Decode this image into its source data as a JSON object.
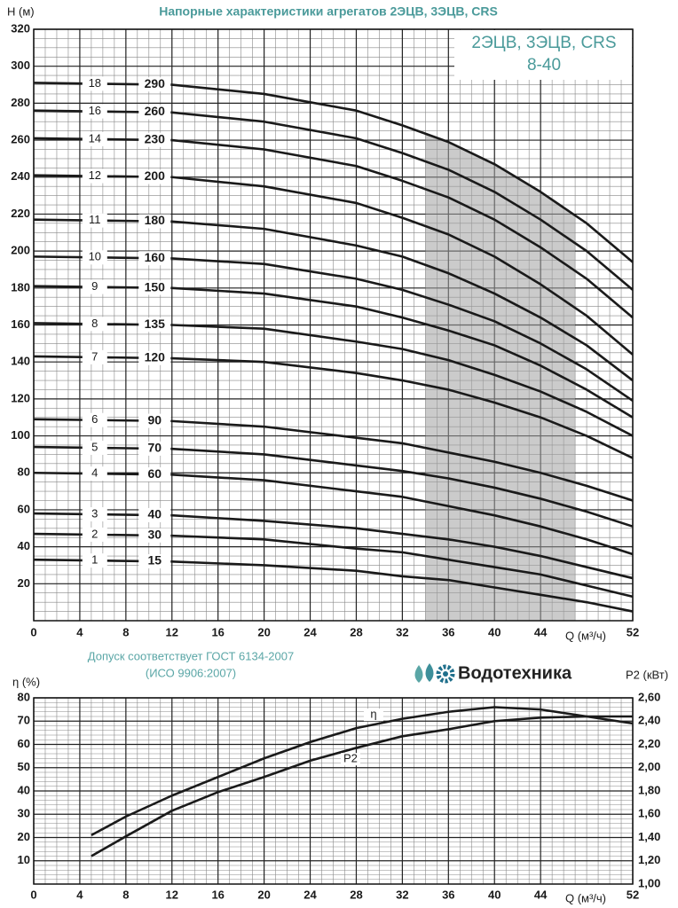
{
  "header": {
    "brand": "Водотехника",
    "note_1": "Допуск соответствует ГОСТ 6134-2007",
    "note_2": "(ИСО 9906:2007)"
  },
  "chart_data": [
    {
      "type": "line",
      "title": "Напорные характеристики агрегатов 2ЭЦВ, 3ЭЦВ, CRS",
      "box_title": "2ЭЦВ, 3ЭЦВ, CRS",
      "box_subtitle": "8-40",
      "x_label": "Q (м³/ч)",
      "y_label": "H (м)",
      "xlim": [
        0,
        52
      ],
      "ylim": [
        0,
        320
      ],
      "xticks": [
        0,
        4,
        8,
        12,
        16,
        20,
        24,
        28,
        32,
        36,
        40,
        44,
        52
      ],
      "yticks": [
        20,
        40,
        60,
        80,
        100,
        120,
        140,
        160,
        180,
        200,
        220,
        240,
        260,
        280,
        300,
        320
      ],
      "grid": true,
      "minor_grid": {
        "x": 1,
        "y": 5
      },
      "working_range": [
        34,
        47
      ],
      "color": "#1a1a1a",
      "x": [
        0,
        12,
        20,
        28,
        32,
        36,
        40,
        44,
        48,
        52
      ],
      "series": [
        {
          "name": "18",
          "label": "290",
          "values": [
            291,
            290,
            285,
            276,
            268,
            259,
            247,
            232,
            215,
            194
          ]
        },
        {
          "name": "16",
          "label": "260",
          "values": [
            276,
            275,
            270,
            261,
            253,
            244,
            232,
            217,
            200,
            179
          ]
        },
        {
          "name": "14",
          "label": "230",
          "values": [
            261,
            260,
            255,
            246,
            238,
            229,
            217,
            202,
            185,
            164
          ]
        },
        {
          "name": "12",
          "label": "200",
          "values": [
            241,
            240,
            235,
            226,
            218,
            209,
            197,
            182,
            165,
            144
          ]
        },
        {
          "name": "11",
          "label": "180",
          "values": [
            217,
            216,
            212,
            203,
            197,
            188,
            177,
            164,
            149,
            130
          ]
        },
        {
          "name": "10",
          "label": "160",
          "values": [
            197,
            196,
            193,
            185,
            179,
            171,
            162,
            150,
            136,
            119
          ]
        },
        {
          "name": "9",
          "label": "150",
          "values": [
            181,
            180,
            177,
            170,
            164,
            157,
            149,
            138,
            125,
            110
          ]
        },
        {
          "name": "8",
          "label": "135",
          "values": [
            161,
            160,
            158,
            151,
            147,
            141,
            133,
            124,
            113,
            100
          ]
        },
        {
          "name": "7",
          "label": "120",
          "values": [
            143,
            142,
            140,
            134,
            130,
            125,
            118,
            110,
            100,
            88
          ]
        },
        {
          "name": "6",
          "label": "90",
          "values": [
            109,
            108,
            105,
            99,
            96,
            91,
            86,
            80,
            73,
            65
          ]
        },
        {
          "name": "5",
          "label": "70",
          "values": [
            94,
            93,
            90,
            84,
            81,
            77,
            72,
            66,
            59,
            51
          ]
        },
        {
          "name": "4",
          "label": "60",
          "values": [
            80,
            79,
            76,
            70,
            67,
            62,
            57,
            51,
            44,
            36
          ]
        },
        {
          "name": "3",
          "label": "40",
          "values": [
            58,
            57,
            54,
            50,
            47,
            44,
            40,
            35,
            29,
            23
          ]
        },
        {
          "name": "2",
          "label": "30",
          "values": [
            47,
            46,
            44,
            39,
            37,
            33,
            29,
            25,
            19,
            13
          ]
        },
        {
          "name": "1",
          "label": "15",
          "values": [
            33,
            32,
            30,
            27,
            24,
            22,
            18,
            14,
            10,
            5
          ]
        }
      ]
    },
    {
      "type": "line",
      "x_label": "Q (м³/ч)",
      "y_label": "η (%)",
      "y2_label": "P2 (кВт)",
      "xlim": [
        0,
        52
      ],
      "ylim": [
        0,
        80
      ],
      "y2lim": [
        1,
        2.6
      ],
      "xticks": [
        0,
        4,
        8,
        12,
        16,
        20,
        24,
        28,
        32,
        36,
        40,
        44,
        52
      ],
      "yticks": [
        10,
        20,
        30,
        40,
        50,
        60,
        70,
        80
      ],
      "y2ticks": [
        {
          "value": 1,
          "label": "1,00"
        },
        {
          "value": 1.2,
          "label": "1,20"
        },
        {
          "value": 1.4,
          "label": "1,40"
        },
        {
          "value": 1.6,
          "label": "1,60"
        },
        {
          "value": 1.8,
          "label": "1,80"
        },
        {
          "value": 2,
          "label": "2,00"
        },
        {
          "value": 2.2,
          "label": "2,20"
        },
        {
          "value": 2.4,
          "label": "2,40"
        },
        {
          "value": 2.6,
          "label": "2,60"
        }
      ],
      "grid": true,
      "minor_grid": {
        "x": 1,
        "y": 2
      },
      "x": [
        5,
        8,
        12,
        16,
        20,
        24,
        28,
        32,
        36,
        40,
        44,
        48,
        52
      ],
      "series": [
        {
          "name": "η",
          "color": "#1a1a1a",
          "values": [
            21,
            29,
            38,
            46,
            54,
            61,
            67,
            71,
            74,
            76,
            75,
            72,
            69
          ]
        },
        {
          "name": "P2",
          "color": "#1a1a1a",
          "axis": "y2",
          "values": [
            1.24,
            1.41,
            1.63,
            1.79,
            1.92,
            2.06,
            2.17,
            2.27,
            2.33,
            2.4,
            2.43,
            2.44,
            2.44
          ]
        }
      ]
    }
  ]
}
